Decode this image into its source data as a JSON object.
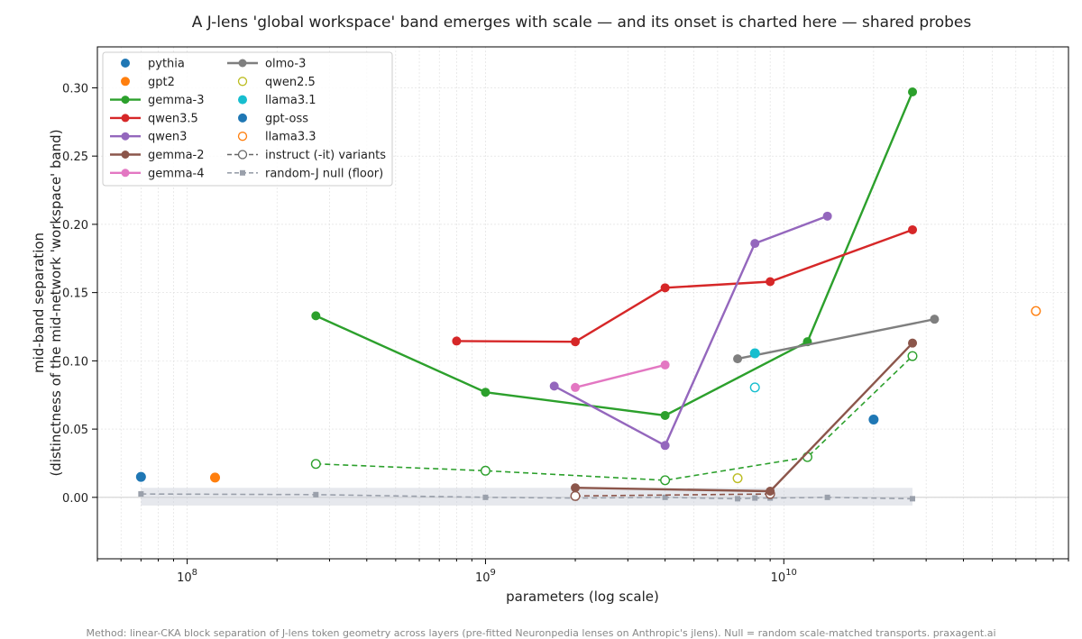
{
  "chart_data": {
    "type": "scatter",
    "title": "A J-lens 'global workspace' band emerges with scale — and its onset is charted here — shared probes",
    "xlabel": "parameters (log scale)",
    "ylabel_line1": "mid-band separation",
    "ylabel_line2": "(distinctness of the mid-network 'workspace' band)",
    "x_scale": "log",
    "xlim": [
      50000000,
      90000000000
    ],
    "ylim": [
      -0.045,
      0.33
    ],
    "y_ticks": [
      {
        "value": 0.0,
        "label": "0.00"
      },
      {
        "value": 0.05,
        "label": "0.05"
      },
      {
        "value": 0.1,
        "label": "0.10"
      },
      {
        "value": 0.15,
        "label": "0.15"
      },
      {
        "value": 0.2,
        "label": "0.20"
      },
      {
        "value": 0.25,
        "label": "0.25"
      },
      {
        "value": 0.3,
        "label": "0.30"
      }
    ],
    "x_ticks": [
      {
        "value": 100000000,
        "base": "10",
        "exp": "8"
      },
      {
        "value": 1000000000,
        "base": "10",
        "exp": "9"
      },
      {
        "value": 10000000000,
        "base": "10",
        "exp": "10"
      }
    ],
    "grid": true,
    "legend_position": "top-left",
    "footnote": "Method: linear-CKA block separation of J-lens token geometry across layers (pre-fitted Neuronpedia lenses on Anthropic's jlens). Null = random scale-matched transports. praxagent.ai",
    "series": [
      {
        "name": "pythia",
        "color": "#1f77b4",
        "style": "point",
        "points": [
          [
            70000000,
            0.015
          ]
        ]
      },
      {
        "name": "gpt2",
        "color": "#ff7f0e",
        "style": "point",
        "points": [
          [
            124000000,
            0.0145
          ]
        ]
      },
      {
        "name": "gemma-3",
        "color": "#2ca02c",
        "style": "line",
        "points": [
          [
            270000000,
            0.133
          ],
          [
            1000000000,
            0.077
          ],
          [
            4000000000,
            0.06
          ],
          [
            12000000000,
            0.114
          ],
          [
            27000000000,
            0.297
          ]
        ]
      },
      {
        "name": "qwen3.5",
        "color": "#d62728",
        "style": "line",
        "points": [
          [
            800000000,
            0.1145
          ],
          [
            2000000000,
            0.114
          ],
          [
            4000000000,
            0.1535
          ],
          [
            9000000000,
            0.158
          ],
          [
            27000000000,
            0.196
          ]
        ]
      },
      {
        "name": "qwen3",
        "color": "#9467bd",
        "style": "line",
        "points": [
          [
            1700000000,
            0.0815
          ],
          [
            4000000000,
            0.038
          ],
          [
            8000000000,
            0.186
          ],
          [
            14000000000,
            0.206
          ]
        ]
      },
      {
        "name": "gemma-2",
        "color": "#8c564b",
        "style": "line",
        "points": [
          [
            2000000000,
            0.007
          ],
          [
            9000000000,
            0.0045
          ],
          [
            27000000000,
            0.113
          ]
        ]
      },
      {
        "name": "gemma-4",
        "color": "#e377c2",
        "style": "line",
        "points": [
          [
            2000000000,
            0.0805
          ],
          [
            4000000000,
            0.097
          ]
        ]
      },
      {
        "name": "olmo-3",
        "color": "#7f7f7f",
        "style": "line",
        "points": [
          [
            7000000000,
            0.1015
          ],
          [
            32000000000,
            0.1305
          ]
        ]
      },
      {
        "name": "qwen2.5",
        "color": "#bcbd22",
        "style": "open",
        "points": [
          [
            7000000000,
            0.014
          ]
        ]
      },
      {
        "name": "llama3.1",
        "color": "#17becf",
        "style": "point",
        "points": [
          [
            8000000000,
            0.1055
          ]
        ]
      },
      {
        "name": "gpt-oss",
        "color": "#1f77b4",
        "style": "point",
        "points": [
          [
            20000000000,
            0.057
          ]
        ]
      },
      {
        "name": "llama3.3",
        "color": "#ff7f0e",
        "style": "open",
        "points": [
          [
            70000000000,
            0.1365
          ]
        ]
      },
      {
        "name": "instruct (-it) variants",
        "color": "#666666",
        "style": "legend-open-dashed",
        "points": []
      },
      {
        "name": "random-J null (floor)",
        "color": "#9aa0ab",
        "style": "null-floor",
        "points": [
          [
            70000000,
            0.0025
          ],
          [
            270000000,
            0.002
          ],
          [
            1000000000,
            0.0
          ],
          [
            2000000000,
            -0.0005
          ],
          [
            4000000000,
            0.0
          ],
          [
            7000000000,
            -0.001
          ],
          [
            8000000000,
            -0.0005
          ],
          [
            9000000000,
            -0.0005
          ],
          [
            14000000000,
            0.0
          ],
          [
            27000000000,
            -0.001
          ]
        ]
      }
    ],
    "instruct_variants": [
      {
        "family": "gemma-3",
        "color": "#2ca02c",
        "points": [
          [
            270000000,
            0.0245
          ],
          [
            1000000000,
            0.0195
          ],
          [
            4000000000,
            0.0125
          ],
          [
            12000000000,
            0.0295
          ],
          [
            27000000000,
            0.1035
          ]
        ]
      },
      {
        "family": "gemma-2",
        "color": "#8c564b",
        "points": [
          [
            2000000000,
            0.001
          ],
          [
            9000000000,
            0.0025
          ]
        ]
      },
      {
        "family": "llama3.1",
        "color": "#17becf",
        "points": [
          [
            8000000000,
            0.0805
          ]
        ]
      }
    ],
    "null_band": {
      "x": [
        70000000,
        27000000000
      ],
      "y": [
        -0.006,
        0.007
      ]
    }
  }
}
